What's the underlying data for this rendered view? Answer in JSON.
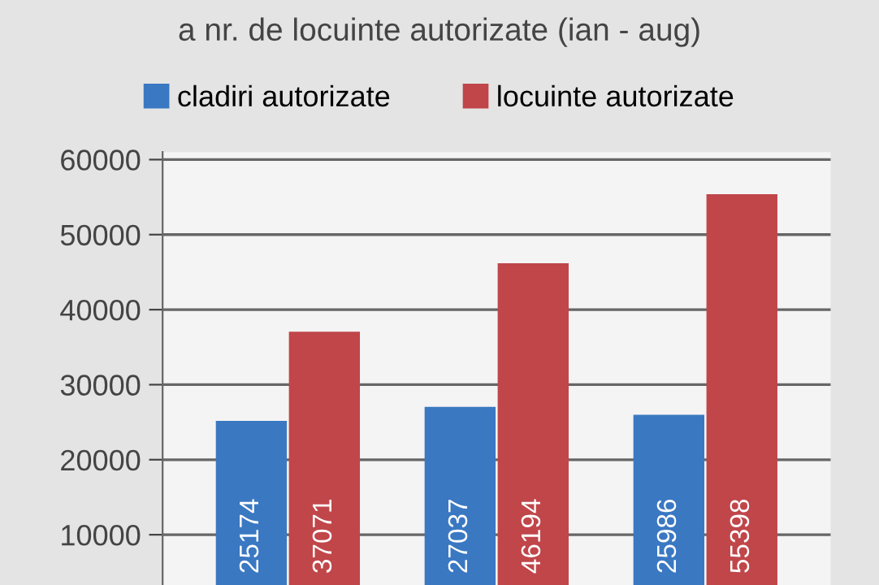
{
  "chart_data": {
    "type": "bar",
    "title": "a nr. de locuinte autorizate (ian - aug)",
    "categories": [
      null,
      null,
      null
    ],
    "series": [
      {
        "name": "cladiri autorizate",
        "color": "#3a78c2",
        "values": [
          25174,
          27037,
          25986
        ]
      },
      {
        "name": "locuinte autorizate",
        "color": "#c0464a",
        "values": [
          37071,
          46194,
          55398
        ]
      }
    ],
    "ylim": [
      3300,
      61000
    ],
    "yticks": [
      10000,
      20000,
      30000,
      40000,
      50000,
      60000
    ],
    "grid": "y",
    "legend": "top",
    "data_labels": true
  }
}
